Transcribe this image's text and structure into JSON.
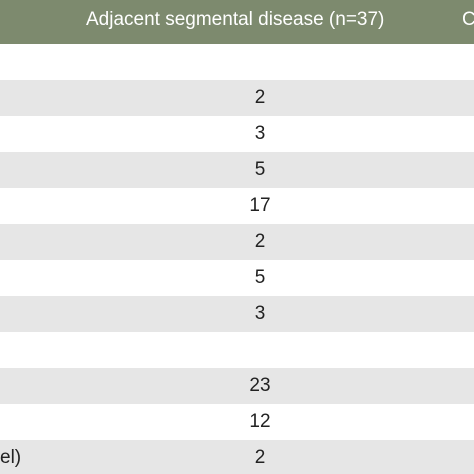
{
  "header": {
    "col_adjacent": "Adjacent segmental disease (n=37)",
    "col_next": "C"
  },
  "rows": [
    {
      "label": "",
      "value": ""
    },
    {
      "label": "",
      "value": "2"
    },
    {
      "label": "",
      "value": "3"
    },
    {
      "label": "",
      "value": "5"
    },
    {
      "label": "",
      "value": "17"
    },
    {
      "label": "",
      "value": "2"
    },
    {
      "label": "",
      "value": "5"
    },
    {
      "label": "",
      "value": "3"
    },
    {
      "label": "",
      "value": ""
    },
    {
      "label": "",
      "value": "23"
    },
    {
      "label": "",
      "value": "12"
    },
    {
      "label": "el)",
      "value": "2"
    }
  ]
}
